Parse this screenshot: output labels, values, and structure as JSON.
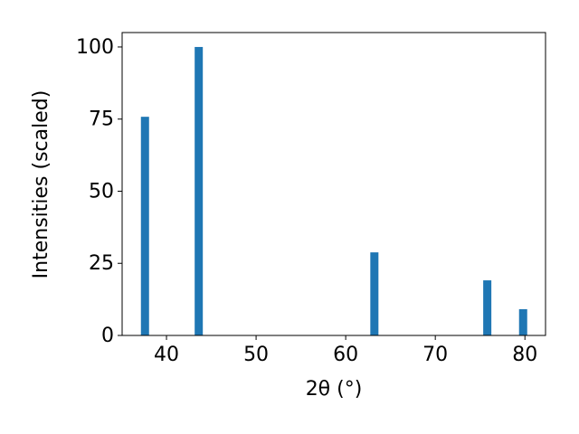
{
  "chart_data": {
    "type": "bar",
    "x": [
      37.6,
      43.6,
      63.2,
      75.8,
      79.8
    ],
    "values": [
      75.8,
      100,
      28.8,
      19.1,
      9.1
    ],
    "color": "#1f77b4",
    "xlabel": "2θ (°)",
    "ylabel": "Intensities (scaled)",
    "xlim": [
      35.05,
      82.3
    ],
    "xticks": [
      40,
      50,
      60,
      70,
      80
    ],
    "ylim": [
      0,
      105
    ],
    "yticks": [
      0,
      25,
      50,
      75,
      100
    ]
  }
}
